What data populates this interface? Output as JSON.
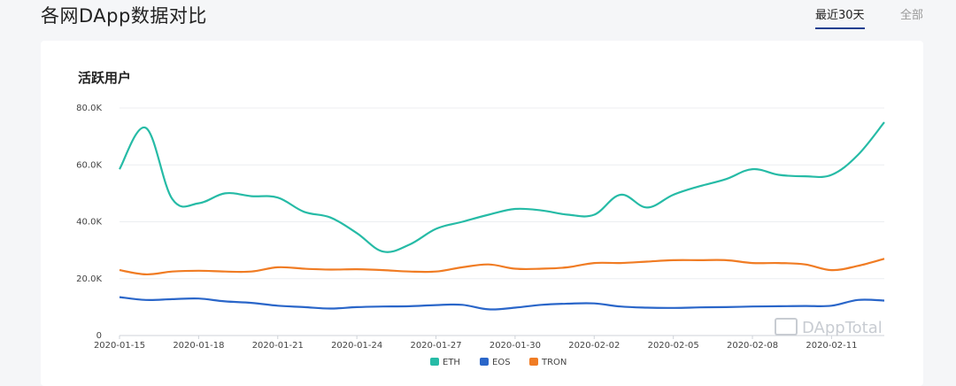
{
  "header": {
    "title": "各网DApp数据对比",
    "tabs": [
      {
        "label": "最近30天",
        "active": true
      },
      {
        "label": "全部",
        "active": false
      }
    ]
  },
  "watermark": "DAppTotal",
  "chart_data": {
    "type": "line",
    "title": "活跃用户",
    "ylim": [
      0,
      80000
    ],
    "y_ticks": [
      0,
      20000,
      40000,
      60000,
      80000
    ],
    "y_tick_labels": [
      "0",
      "20.0K",
      "40.0K",
      "60.0K",
      "80.0K"
    ],
    "x_tick_labels": [
      "2020-01-15",
      "2020-01-18",
      "2020-01-21",
      "2020-01-24",
      "2020-01-27",
      "2020-01-30",
      "2020-02-02",
      "2020-02-05",
      "2020-02-08",
      "2020-02-11"
    ],
    "x": [
      "2020-01-15",
      "2020-01-16",
      "2020-01-17",
      "2020-01-18",
      "2020-01-19",
      "2020-01-20",
      "2020-01-21",
      "2020-01-22",
      "2020-01-23",
      "2020-01-24",
      "2020-01-25",
      "2020-01-26",
      "2020-01-27",
      "2020-01-28",
      "2020-01-29",
      "2020-01-30",
      "2020-01-31",
      "2020-02-01",
      "2020-02-02",
      "2020-02-03",
      "2020-02-04",
      "2020-02-05",
      "2020-02-06",
      "2020-02-07",
      "2020-02-08",
      "2020-02-09",
      "2020-02-10",
      "2020-02-11",
      "2020-02-12",
      "2020-02-13"
    ],
    "grid": true,
    "legend_position": "bottom",
    "series": [
      {
        "name": "ETH",
        "color": "#26bba6",
        "values": [
          58500,
          73000,
          48000,
          46500,
          50000,
          49000,
          48500,
          43500,
          41500,
          36000,
          29500,
          32000,
          37500,
          40000,
          42500,
          44500,
          44000,
          42500,
          42500,
          49500,
          45000,
          49500,
          52500,
          55000,
          58500,
          56500,
          56000,
          56500,
          63500,
          75000
        ]
      },
      {
        "name": "EOS",
        "color": "#2a66c9",
        "values": [
          13500,
          12500,
          12800,
          13000,
          12000,
          11500,
          10500,
          10000,
          9500,
          10000,
          10200,
          10300,
          10700,
          10800,
          9200,
          9800,
          10800,
          11200,
          11300,
          10200,
          9800,
          9700,
          9900,
          10000,
          10200,
          10300,
          10400,
          10500,
          12500,
          12300
        ]
      },
      {
        "name": "TRON",
        "color": "#f07c24",
        "values": [
          23000,
          21500,
          22500,
          22800,
          22500,
          22500,
          24000,
          23500,
          23200,
          23300,
          23000,
          22500,
          22500,
          24000,
          25000,
          23500,
          23500,
          24000,
          25500,
          25500,
          26000,
          26500,
          26500,
          26500,
          25500,
          25500,
          25000,
          23000,
          24500,
          27000
        ]
      }
    ]
  }
}
